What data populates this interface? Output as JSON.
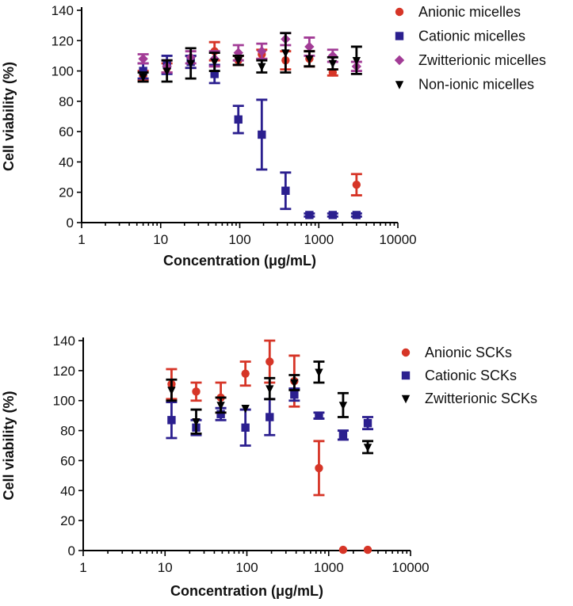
{
  "chart_data": [
    {
      "type": "scatter",
      "title": "",
      "xlabel": "Concentration (μg/mL)",
      "ylabel": "Cell viability (%)",
      "xscale": "log",
      "xlim": [
        1,
        10000
      ],
      "ylim": [
        0,
        140
      ],
      "xticks": [
        1,
        10,
        100,
        1000,
        10000
      ],
      "xtick_labels": [
        "1",
        "10",
        "100",
        "1000",
        "10000"
      ],
      "yticks": [
        0,
        20,
        40,
        60,
        80,
        100,
        120,
        140
      ],
      "ytick_labels": [
        "0",
        "20",
        "40",
        "60",
        "80",
        "100",
        "120",
        "140"
      ],
      "legend_position": "top-right",
      "series": [
        {
          "name": "Anionic micelles",
          "marker": "circle",
          "color": "#d63527",
          "x": [
            6,
            12,
            24,
            48,
            96,
            190,
            380,
            760,
            1500,
            3000
          ],
          "y": [
            97,
            102,
            106,
            113,
            107,
            111,
            107,
            108,
            99,
            25
          ],
          "err": [
            3,
            3,
            4,
            6,
            3,
            3,
            6,
            5,
            2,
            7
          ]
        },
        {
          "name": "Cationic micelles",
          "marker": "square",
          "color": "#2b1f8f",
          "x": [
            6,
            12,
            24,
            48,
            96,
            190,
            380,
            760,
            1500,
            3000
          ],
          "y": [
            100,
            104,
            106,
            98,
            68,
            58,
            21,
            5,
            5,
            5
          ],
          "err": [
            5,
            6,
            4,
            6,
            9,
            23,
            12,
            1,
            1,
            1
          ]
        },
        {
          "name": "Zwitterionic micelles",
          "marker": "diamond",
          "color": "#a23c96",
          "x": [
            6,
            12,
            24,
            48,
            96,
            190,
            380,
            760,
            1500,
            3000
          ],
          "y": [
            108,
            103,
            109,
            108,
            112,
            113,
            121,
            116,
            110,
            103
          ],
          "err": [
            3,
            4,
            4,
            5,
            5,
            5,
            4,
            6,
            4,
            3
          ]
        },
        {
          "name": "Non-ionic micelles",
          "marker": "triangle-down",
          "color": "#000000",
          "x": [
            6,
            12,
            24,
            48,
            96,
            190,
            380,
            760,
            1500,
            3000
          ],
          "y": [
            96,
            100,
            105,
            106,
            107,
            103,
            112,
            108,
            105,
            107
          ],
          "err": [
            3,
            7,
            10,
            6,
            3,
            4,
            13,
            5,
            4,
            9
          ]
        }
      ]
    },
    {
      "type": "scatter",
      "title": "",
      "xlabel": "Concentration (μg/mL)",
      "ylabel": "Cell viability (%)",
      "xscale": "log",
      "xlim": [
        1,
        10000
      ],
      "ylim": [
        0,
        140
      ],
      "xticks": [
        1,
        10,
        100,
        1000,
        10000
      ],
      "xtick_labels": [
        "1",
        "10",
        "100",
        "1000",
        "10000"
      ],
      "yticks": [
        0,
        20,
        40,
        60,
        80,
        100,
        120,
        140
      ],
      "ytick_labels": [
        "0",
        "20",
        "40",
        "60",
        "80",
        "100",
        "120",
        "140"
      ],
      "legend_position": "top-right",
      "series": [
        {
          "name": "Anionic SCKs",
          "marker": "circle",
          "color": "#d63527",
          "x": [
            12,
            24,
            48,
            96,
            190,
            380,
            760,
            1500,
            3000
          ],
          "y": [
            111,
            106,
            102,
            118,
            126,
            113,
            55,
            0.5,
            0.5
          ],
          "err": [
            10,
            6,
            10,
            8,
            14,
            17,
            18,
            0,
            0
          ]
        },
        {
          "name": "Cationic SCKs",
          "marker": "square",
          "color": "#2b1f8f",
          "x": [
            12,
            24,
            48,
            96,
            190,
            380,
            760,
            1500,
            3000
          ],
          "y": [
            87,
            82,
            91,
            82,
            89,
            104,
            90,
            77,
            85
          ],
          "err": [
            12,
            5,
            4,
            12,
            12,
            4,
            2,
            3,
            4
          ]
        },
        {
          "name": "Zwitterionic SCKs",
          "marker": "triangle-down",
          "color": "#000000",
          "x": [
            12,
            24,
            48,
            96,
            190,
            380,
            760,
            1500,
            3000
          ],
          "y": [
            107,
            86,
            97,
            95,
            108,
            112,
            119,
            97,
            69
          ],
          "err": [
            7,
            8,
            5,
            0,
            7,
            5,
            7,
            8,
            4
          ]
        }
      ]
    }
  ]
}
